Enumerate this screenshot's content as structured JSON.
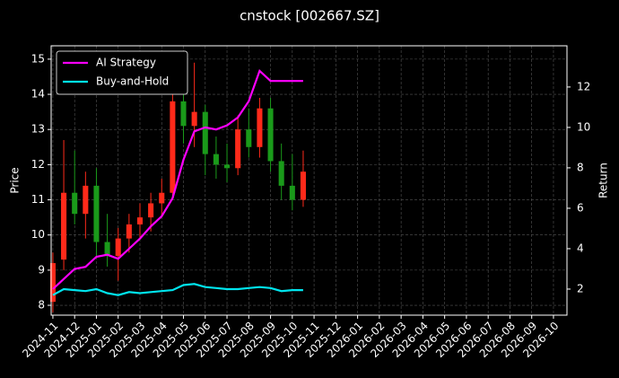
{
  "chart_data": {
    "type": "candlestick",
    "title": "cnstock [002667.SZ]",
    "ylabel": "Price",
    "y2label": "Return",
    "x": [
      0,
      0.5,
      1,
      1.5,
      2,
      2.5,
      3,
      3.5,
      4,
      4.5,
      5,
      5.5,
      6,
      6.5,
      7,
      7.5,
      8,
      8.5,
      9,
      9.5,
      10,
      10.5,
      11,
      11.5
    ],
    "open": [
      8.1,
      9.3,
      11.2,
      10.6,
      11.4,
      9.8,
      9.4,
      9.9,
      10.3,
      10.5,
      10.9,
      11.2,
      13.8,
      13.1,
      13.5,
      12.3,
      12.0,
      11.9,
      13.0,
      12.5,
      13.6,
      12.1,
      11.4,
      11.0
    ],
    "high": [
      9.5,
      12.7,
      12.4,
      11.8,
      11.9,
      10.6,
      10.2,
      10.6,
      10.9,
      11.2,
      11.6,
      14.3,
      14.4,
      14.9,
      13.7,
      12.8,
      12.6,
      13.4,
      13.6,
      13.9,
      13.9,
      12.6,
      12.3,
      12.4
    ],
    "low": [
      7.8,
      9.0,
      10.3,
      9.9,
      9.4,
      9.1,
      8.7,
      9.5,
      9.9,
      10.1,
      10.5,
      11.0,
      12.6,
      12.5,
      11.7,
      11.6,
      11.5,
      11.7,
      12.2,
      12.2,
      11.8,
      11.0,
      10.7,
      10.8
    ],
    "close": [
      9.2,
      11.2,
      10.6,
      11.4,
      9.8,
      9.4,
      9.9,
      10.3,
      10.5,
      10.9,
      11.2,
      13.8,
      13.1,
      13.5,
      12.3,
      12.0,
      11.9,
      13.0,
      12.5,
      13.6,
      12.1,
      11.4,
      11.0,
      11.8
    ],
    "up_color": "#ff2a1a",
    "down_color": "#1a9a1a",
    "series": [
      {
        "name": "AI Strategy",
        "color": "#ff00ff",
        "axis": "y2",
        "values": [
          2.0,
          2.5,
          3.0,
          3.1,
          3.6,
          3.7,
          3.5,
          4.0,
          4.5,
          5.1,
          5.6,
          6.5,
          8.4,
          9.8,
          10.0,
          9.9,
          10.1,
          10.5,
          11.3,
          12.8,
          12.3,
          12.3,
          12.3,
          12.3
        ]
      },
      {
        "name": "Buy-and-Hold",
        "color": "#00e5ee",
        "axis": "y2",
        "values": [
          1.7,
          2.0,
          1.95,
          1.9,
          2.0,
          1.8,
          1.7,
          1.85,
          1.8,
          1.85,
          1.9,
          1.95,
          2.2,
          2.25,
          2.1,
          2.05,
          2.0,
          2.0,
          2.05,
          2.1,
          2.05,
          1.9,
          1.95,
          1.95
        ]
      }
    ],
    "xlim": [
      -0.08,
      23.62
    ],
    "xticks": [
      {
        "value": 0,
        "label": "2024-11"
      },
      {
        "value": 1,
        "label": "2024-12"
      },
      {
        "value": 2,
        "label": "2025-01"
      },
      {
        "value": 3,
        "label": "2025-02"
      },
      {
        "value": 4,
        "label": "2025-03"
      },
      {
        "value": 5,
        "label": "2025-04"
      },
      {
        "value": 6,
        "label": "2025-05"
      },
      {
        "value": 7,
        "label": "2025-06"
      },
      {
        "value": 8,
        "label": "2025-07"
      },
      {
        "value": 9,
        "label": "2025-08"
      },
      {
        "value": 10,
        "label": "2025-09"
      },
      {
        "value": 11,
        "label": "2025-10"
      },
      {
        "value": 12,
        "label": "2025-11"
      },
      {
        "value": 13,
        "label": "2025-12"
      },
      {
        "value": 14,
        "label": "2026-01"
      },
      {
        "value": 15,
        "label": "2026-02"
      },
      {
        "value": 16,
        "label": "2026-03"
      },
      {
        "value": 17,
        "label": "2026-04"
      },
      {
        "value": 18,
        "label": "2026-05"
      },
      {
        "value": 19,
        "label": "2026-06"
      },
      {
        "value": 20,
        "label": "2026-07"
      },
      {
        "value": 21,
        "label": "2026-08"
      },
      {
        "value": 22,
        "label": "2026-09"
      },
      {
        "value": 23,
        "label": "2026-10"
      }
    ],
    "ylim": [
      7.72,
      15.38
    ],
    "yticks": [
      8,
      9,
      10,
      11,
      12,
      13,
      14,
      15
    ],
    "y2lim": [
      0.71,
      14.04
    ],
    "y2ticks": [
      2,
      4,
      6,
      8,
      10,
      12
    ],
    "grid": true,
    "legend": "upper left"
  }
}
